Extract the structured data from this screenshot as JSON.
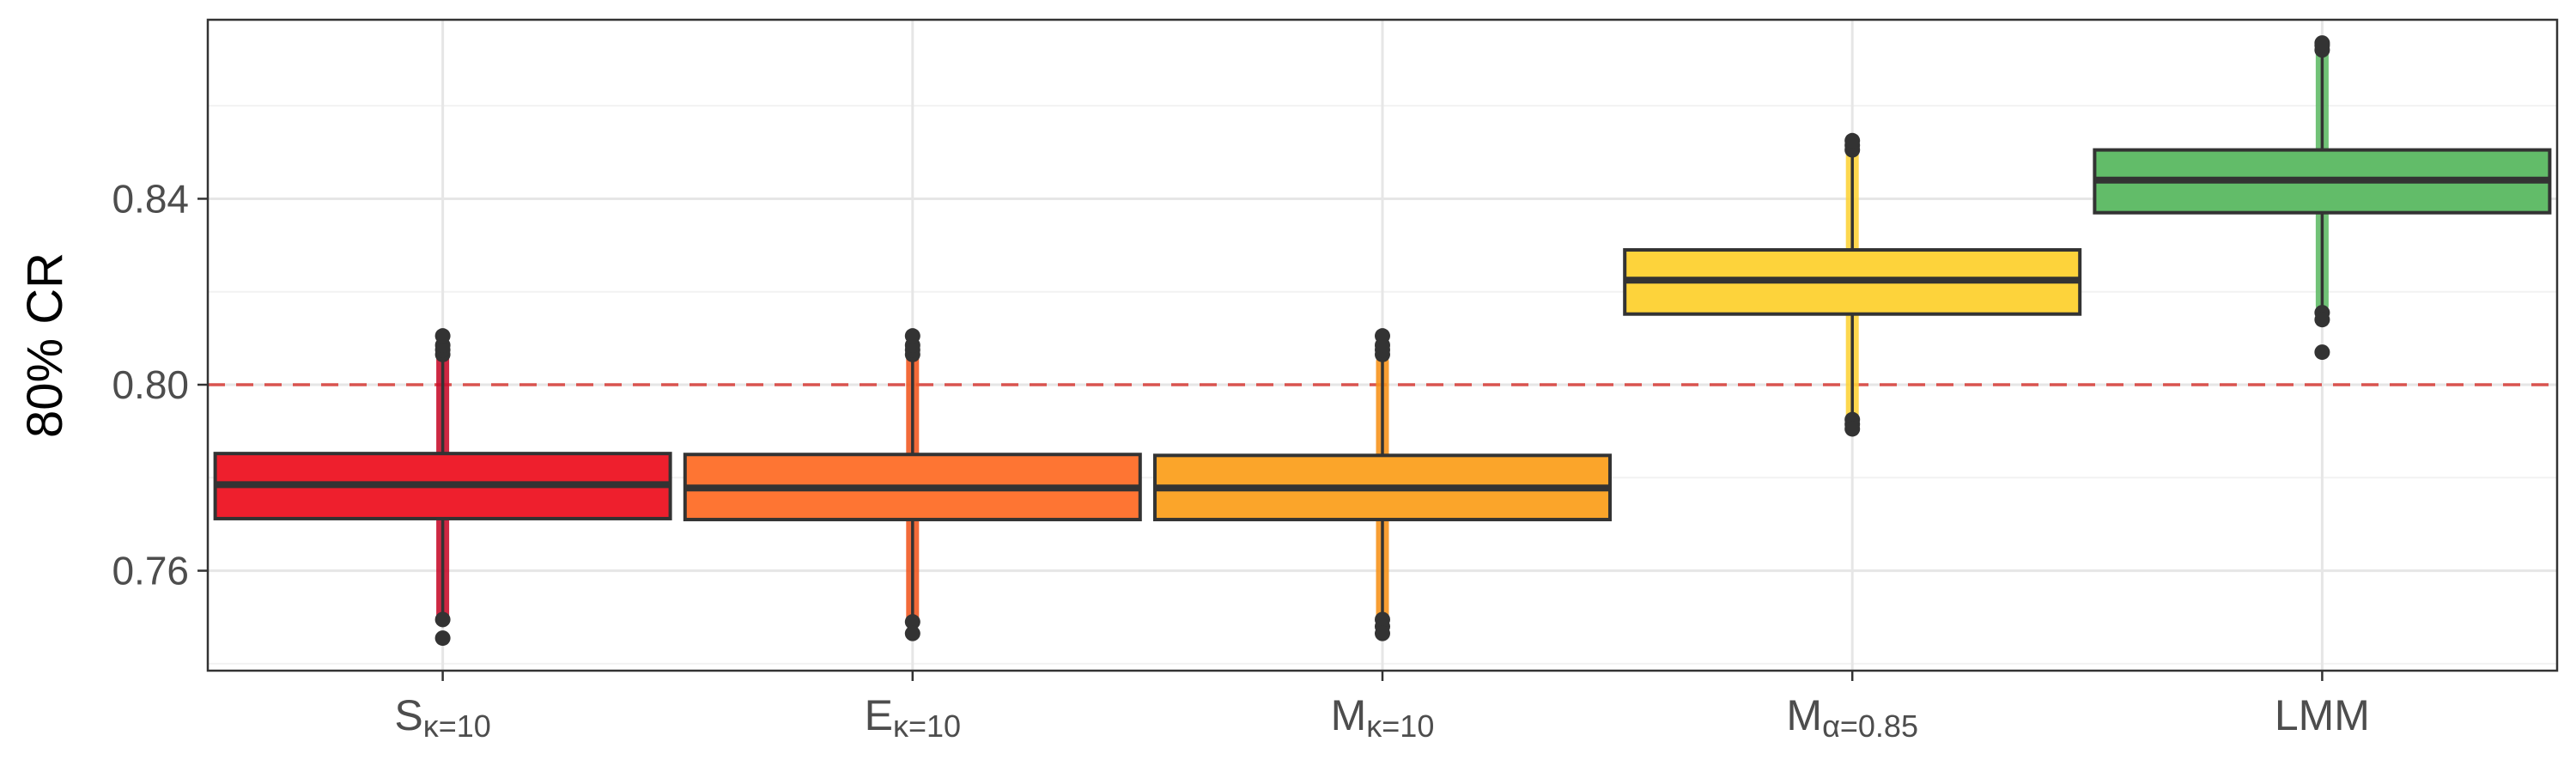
{
  "chart_data": {
    "type": "box",
    "ylabel": "80% CR",
    "xlabel": "",
    "ylim": [
      0.7385,
      0.8785
    ],
    "y_ticks": [
      "0.76",
      "0.80",
      "0.84"
    ],
    "y_tick_values": [
      0.76,
      0.8,
      0.84
    ],
    "y_minor_gridlines": [
      0.74,
      0.78,
      0.82,
      0.86
    ],
    "grid": true,
    "reference_line": {
      "value": 0.8,
      "style": "dashed",
      "color": "#d9534f"
    },
    "categories": [
      {
        "main": "S",
        "sub": "κ=10"
      },
      {
        "main": "E",
        "sub": "κ=10"
      },
      {
        "main": "M",
        "sub": "κ=10"
      },
      {
        "main": "M",
        "sub": "α=0.85"
      },
      {
        "main": "LMM",
        "sub": ""
      }
    ],
    "boxes": [
      {
        "q1": 0.7712,
        "median": 0.7785,
        "q3": 0.7852,
        "whisker_low": 0.7505,
        "whisker_high": 0.8055,
        "outliers": [
          0.7495,
          0.7455,
          0.8065,
          0.8075,
          0.8085,
          0.8105
        ],
        "fill": "#ee1f2d",
        "stroke": "#c8102e"
      },
      {
        "q1": 0.771,
        "median": 0.7778,
        "q3": 0.785,
        "whisker_low": 0.75,
        "whisker_high": 0.8055,
        "outliers": [
          0.749,
          0.7465,
          0.8065,
          0.8075,
          0.8085,
          0.8105
        ],
        "fill": "#fe7533",
        "stroke": "#f15a24"
      },
      {
        "q1": 0.771,
        "median": 0.7778,
        "q3": 0.7848,
        "whisker_low": 0.7505,
        "whisker_high": 0.805,
        "outliers": [
          0.7495,
          0.748,
          0.7465,
          0.8065,
          0.8075,
          0.8085,
          0.8105
        ],
        "fill": "#fba52a",
        "stroke": "#f7941d"
      },
      {
        "q1": 0.8152,
        "median": 0.8225,
        "q3": 0.829,
        "whisker_low": 0.7935,
        "whisker_high": 0.85,
        "outliers": [
          0.7925,
          0.7915,
          0.7905,
          0.8505,
          0.8515,
          0.8525
        ],
        "fill": "#fdd33b",
        "stroke": "#fdd33b"
      },
      {
        "q1": 0.837,
        "median": 0.844,
        "q3": 0.8505,
        "whisker_low": 0.817,
        "whisker_high": 0.8715,
        "outliers": [
          0.8155,
          0.814,
          0.807,
          0.872,
          0.873,
          0.8735
        ],
        "fill": "#62bc69",
        "stroke": "#62bc69"
      }
    ]
  }
}
